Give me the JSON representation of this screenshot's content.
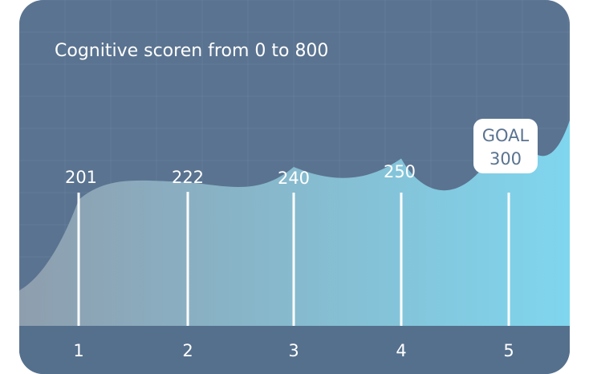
{
  "chart_data": {
    "type": "area",
    "title": "Cognitive scoren from 0 to 800",
    "x": [
      "1",
      "2",
      "3",
      "4",
      "5"
    ],
    "values": [
      201,
      222,
      240,
      250,
      null
    ],
    "goal": {
      "label": "GOAL",
      "value": 300
    },
    "ylim": [
      0,
      800
    ],
    "grid": true,
    "colors": {
      "background": "#5a7390",
      "grid": "#6a82a0",
      "axis_band": "#55708d",
      "area_start": "#8e9eae",
      "area_end": "#7fd6ee",
      "marker": "#ffffff"
    }
  }
}
